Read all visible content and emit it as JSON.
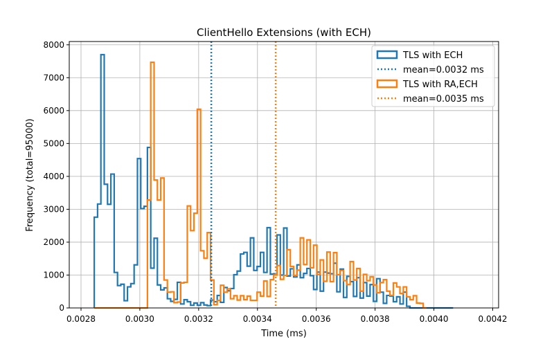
{
  "chart_data": {
    "type": "histogram",
    "title": "ClientHello Extensions (with ECH)",
    "xlabel": "Time (ms)",
    "ylabel": "Frequency (total=95000)",
    "xlim": [
      0.00276,
      0.00422
    ],
    "ylim": [
      0,
      8100
    ],
    "xticks": [
      0.0028,
      0.003,
      0.0032,
      0.0034,
      0.0036,
      0.0038,
      0.004,
      0.0042
    ],
    "xtick_labels": [
      "0.0028",
      "0.0030",
      "0.0032",
      "0.0034",
      "0.0036",
      "0.0038",
      "0.0040",
      "0.0042"
    ],
    "yticks": [
      0,
      1000,
      2000,
      3000,
      4000,
      5000,
      6000,
      7000,
      8000
    ],
    "ytick_labels": [
      "0",
      "1000",
      "2000",
      "3000",
      "4000",
      "5000",
      "6000",
      "7000",
      "8000"
    ],
    "grid": true,
    "legend_position": "top-right",
    "series": [
      {
        "name": "TLS with ECH",
        "color": "#1f77b4",
        "bin_start": 0.002845,
        "bin_width": 1.13e-05,
        "counts": [
          2760,
          3160,
          7700,
          3760,
          3150,
          4070,
          1080,
          680,
          720,
          220,
          640,
          740,
          1310,
          4540,
          3020,
          3090,
          4880,
          1210,
          2120,
          700,
          550,
          610,
          280,
          200,
          260,
          780,
          120,
          250,
          190,
          80,
          150,
          80,
          160,
          90,
          70,
          240,
          190,
          380,
          170,
          620,
          520,
          590,
          1010,
          1120,
          1640,
          1690,
          1270,
          2130,
          1140,
          1260,
          1690,
          1080,
          2440,
          1030,
          1040,
          2220,
          1000,
          2430,
          970,
          1190,
          940,
          1310,
          920,
          1050,
          1200,
          980,
          560,
          1090,
          510,
          1090,
          1060,
          1040,
          1360,
          490,
          1180,
          320,
          960,
          800,
          350,
          920,
          300,
          770,
          360,
          710,
          200,
          890,
          480,
          140,
          380,
          360,
          190,
          340,
          120,
          480,
          50,
          0,
          0,
          0,
          0,
          0,
          0,
          0,
          0,
          0,
          0,
          0,
          0,
          0
        ]
      },
      {
        "name": "TLS with RA,ECH",
        "color": "#ff7f0e",
        "bin_start": 0.002845,
        "bin_width": 1.13e-05,
        "counts": [
          0,
          0,
          0,
          0,
          0,
          0,
          0,
          0,
          0,
          0,
          0,
          0,
          0,
          0,
          0,
          0,
          3280,
          7470,
          3890,
          3280,
          3950,
          850,
          480,
          490,
          160,
          180,
          760,
          780,
          3100,
          2350,
          2880,
          6040,
          1740,
          1510,
          2290,
          850,
          100,
          230,
          690,
          480,
          580,
          280,
          370,
          240,
          370,
          250,
          360,
          230,
          230,
          480,
          360,
          820,
          350,
          860,
          1000,
          1290,
          870,
          990,
          1770,
          1260,
          990,
          1150,
          2130,
          1320,
          2070,
          1220,
          1910,
          1020,
          1460,
          810,
          1700,
          800,
          1680,
          1010,
          1140,
          830,
          710,
          1410,
          850,
          1200,
          510,
          1020,
          830,
          950,
          700,
          460,
          770,
          860,
          510,
          380,
          760,
          640,
          440,
          640,
          340,
          250,
          370,
          150,
          140,
          0
        ]
      }
    ],
    "mean_lines": [
      {
        "label": "mean=0.0032 ms",
        "value": 0.003243,
        "color": "#1f77b4"
      },
      {
        "label": "mean=0.0035 ms",
        "value": 0.003462,
        "color": "#ff7f0e"
      }
    ]
  }
}
